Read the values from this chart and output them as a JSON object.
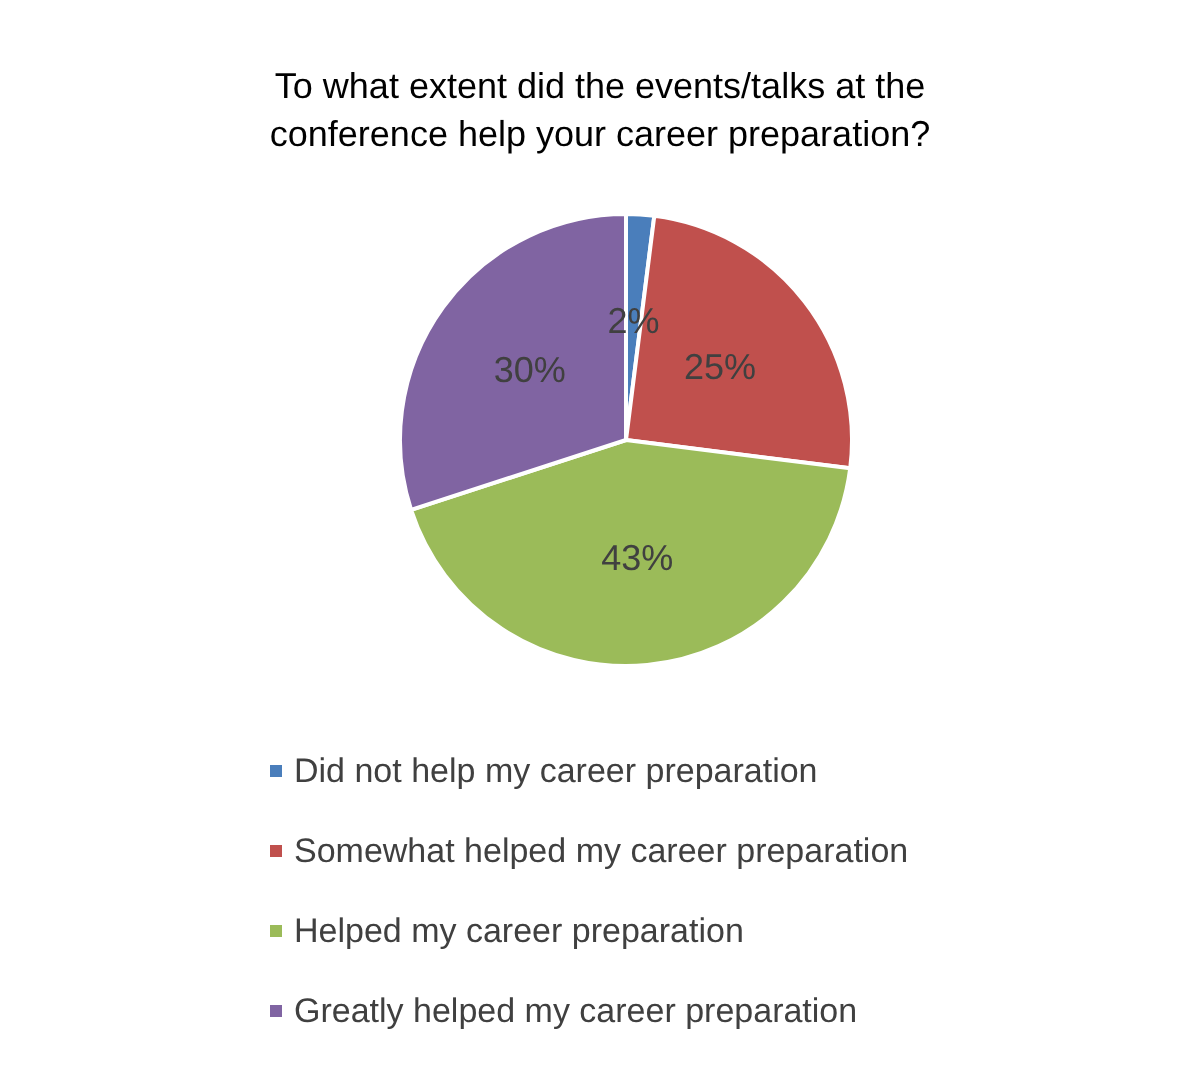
{
  "chart_data": {
    "type": "pie",
    "title": "To what extent did the events/talks at the\nconference help your career preparation?",
    "categories": [
      "Did not help my career preparation",
      "Somewhat helped my career preparation",
      "Helped my career preparation",
      "Greatly helped my career preparation"
    ],
    "values": [
      2,
      25,
      43,
      30
    ],
    "value_labels": [
      "2%",
      "25%",
      "43%",
      "30%"
    ],
    "colors": [
      "#4a7ebb",
      "#c0504d",
      "#9bbb59",
      "#8064a2"
    ],
    "legend": "bottom"
  }
}
